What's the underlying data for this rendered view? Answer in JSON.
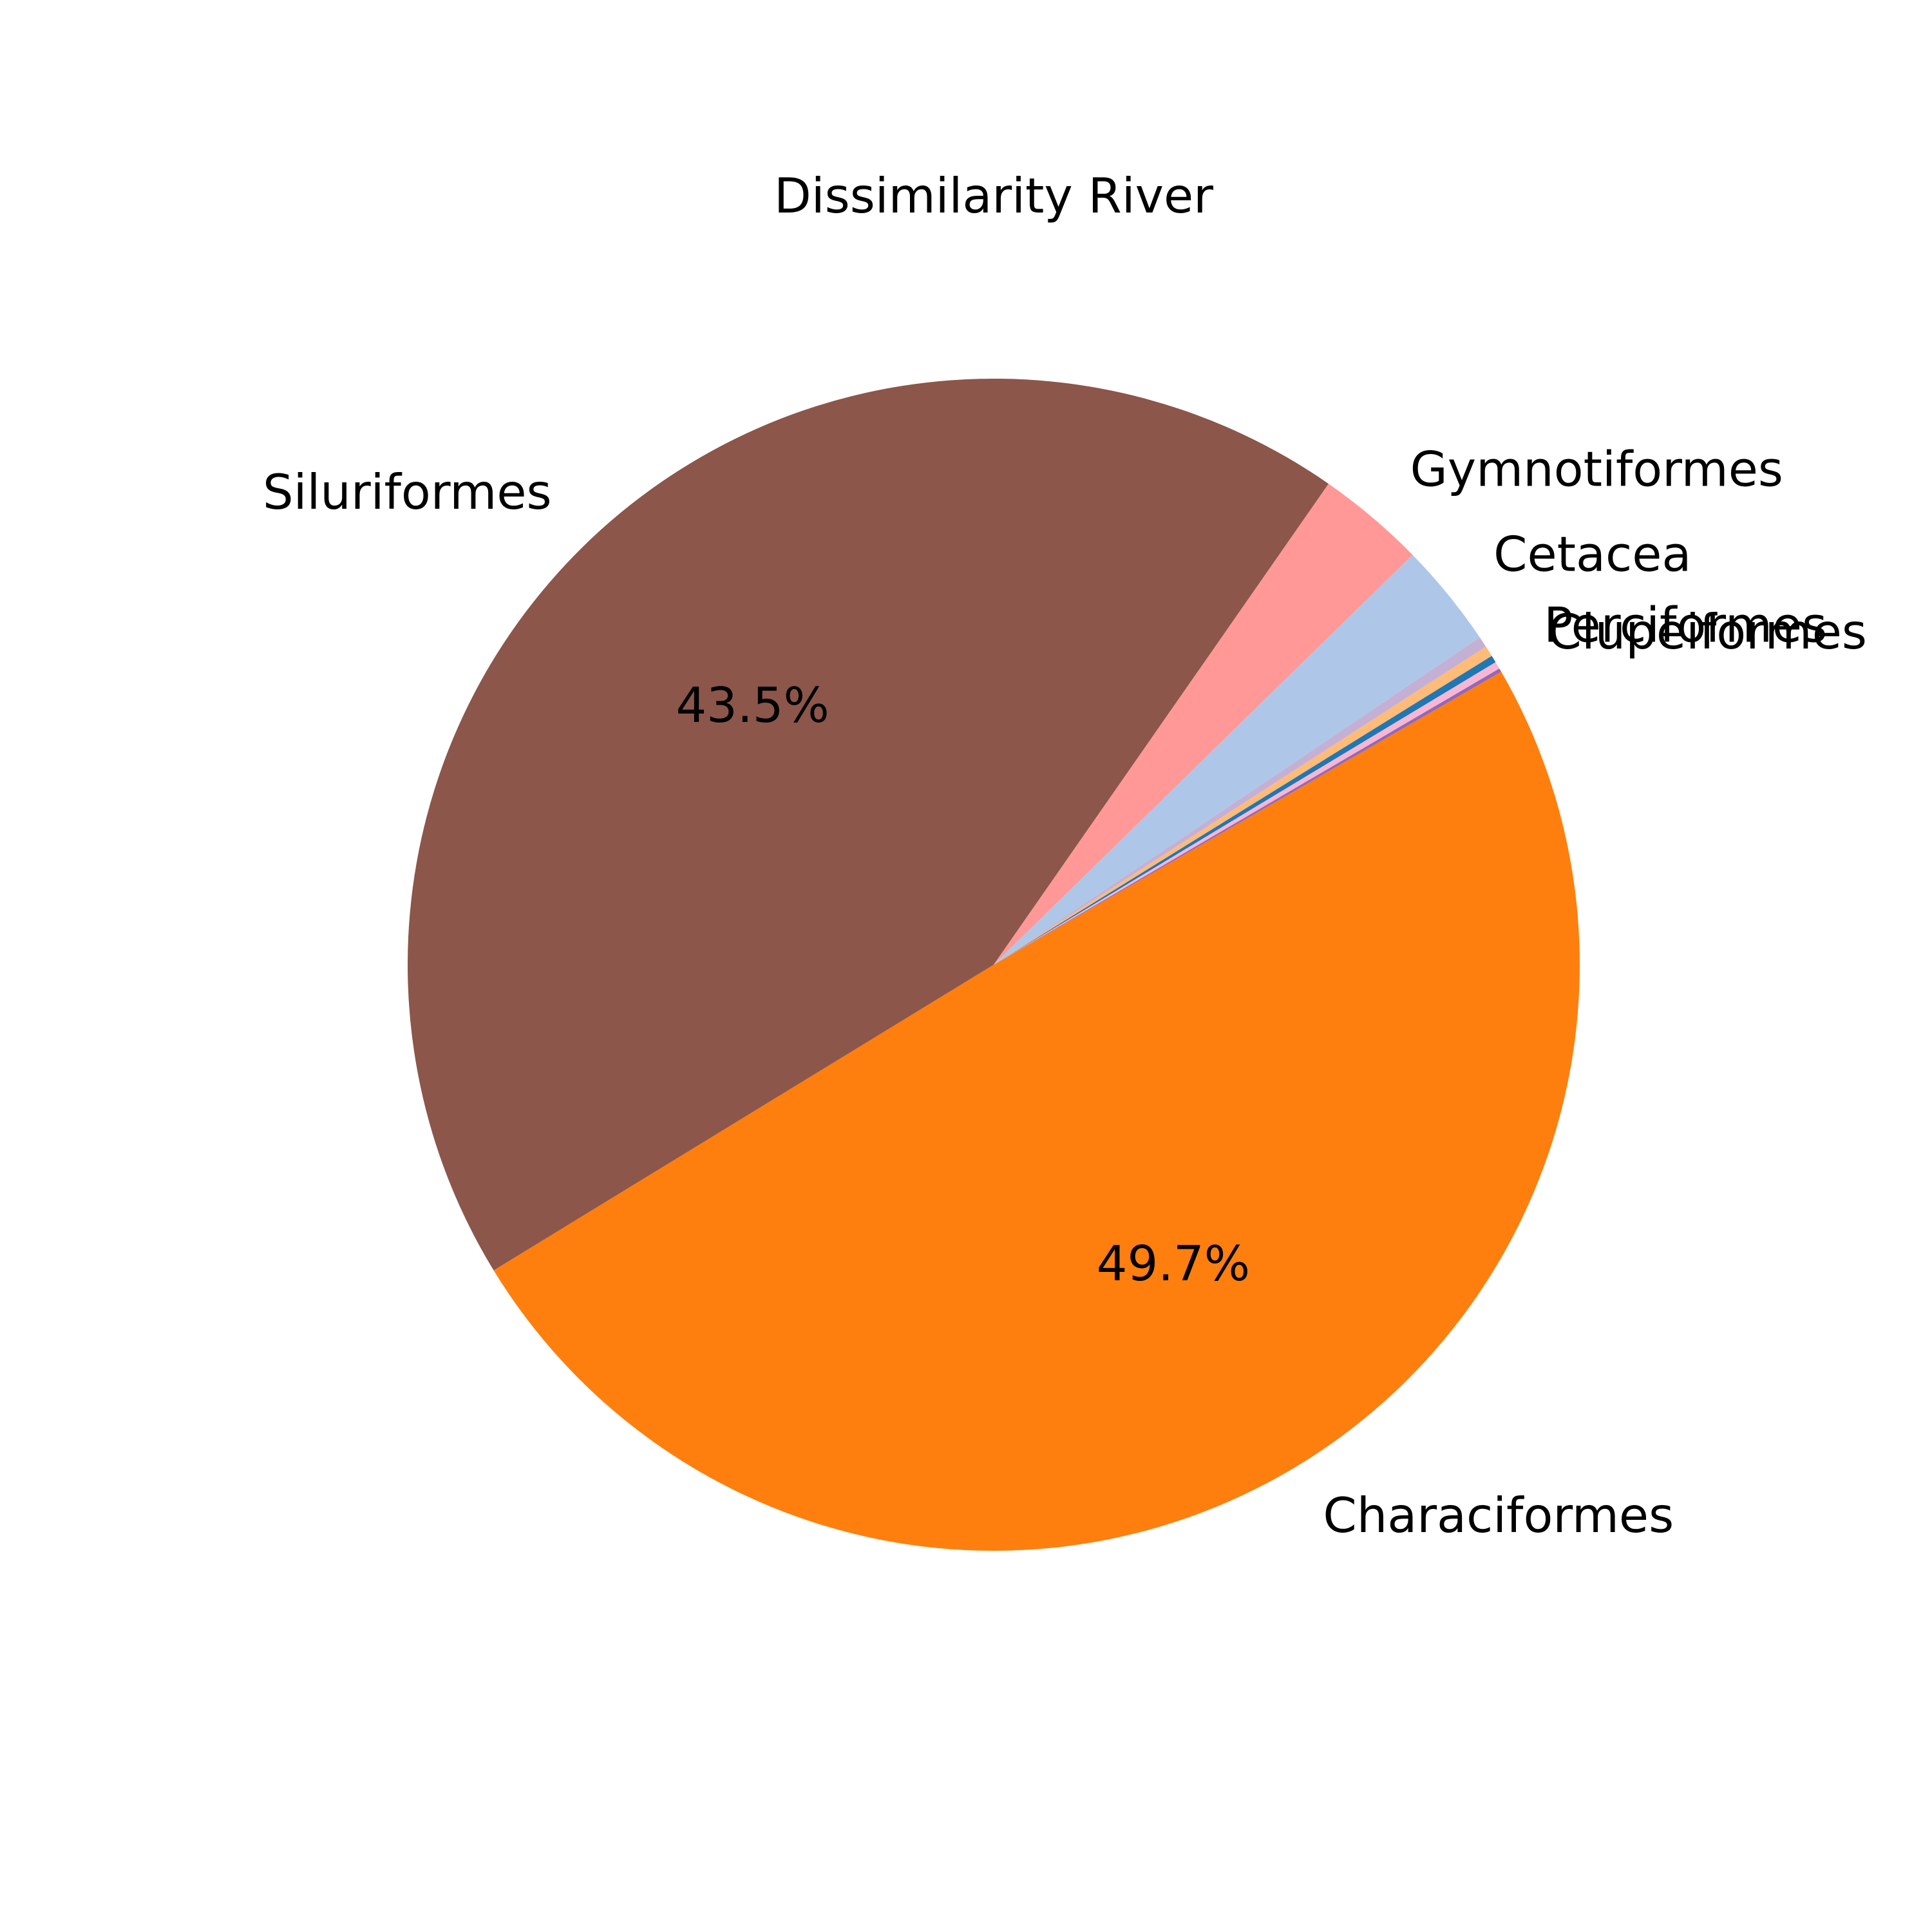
{
  "chart_data": {
    "type": "pie",
    "title": "Dissimilarity River",
    "categories": [
      "Characiformes",
      "Siluriformes",
      "Gymnotiformes",
      "Cetacea",
      "",
      "",
      "Perciformes",
      "Clupeiformes",
      ""
    ],
    "values": [
      49.7,
      43.5,
      3.0,
      2.9,
      0.3,
      0.3,
      0.2,
      0.2,
      0.1
    ],
    "colors": [
      "#ff7f0e",
      "#8c564b",
      "#ff9896",
      "#aec7e8",
      "#c5b0d5",
      "#ffbb78",
      "#1f77b4",
      "#f7b6d2",
      "#9467bd"
    ],
    "percent_labels": [
      "49.7%",
      "43.5%",
      "",
      "",
      "",
      "",
      "",
      "",
      ""
    ],
    "start_angle_deg": -30,
    "direction": "clockwise"
  }
}
